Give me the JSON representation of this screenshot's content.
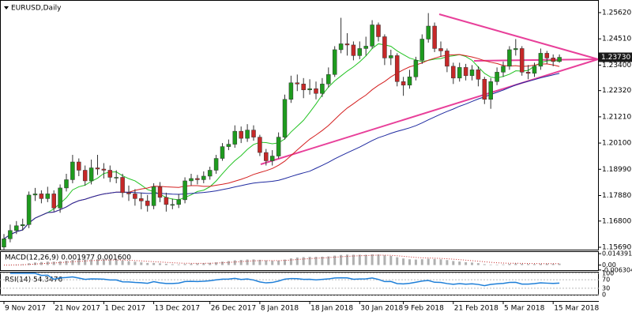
{
  "chart_data": {
    "type": "candlestick",
    "title": "EURUSD,Daily",
    "categories": [
      "9 Nov 2017",
      null,
      null,
      null,
      null,
      null,
      null,
      null,
      "21 Nov 2017",
      null,
      null,
      null,
      null,
      null,
      null,
      null,
      "1 Dec 2017",
      null,
      null,
      null,
      null,
      null,
      null,
      null,
      "13 Dec 2017",
      null,
      null,
      null,
      null,
      null,
      null,
      null,
      null,
      "26 Dec 2017",
      null,
      null,
      null,
      null,
      null,
      null,
      null,
      "8 Jan 2018",
      null,
      null,
      null,
      null,
      null,
      null,
      null,
      "18 Jan 2018",
      null,
      null,
      null,
      null,
      null,
      null,
      null,
      "30 Jan 2018",
      null,
      null,
      null,
      null,
      null,
      null,
      "9 Feb 2018",
      null,
      null,
      null,
      null,
      null,
      null,
      null,
      "21 Feb 2018",
      null,
      null,
      null,
      null,
      null,
      null,
      null,
      "5 Mar 2018",
      null,
      null,
      null,
      null,
      null,
      null,
      null,
      "15 Mar 2018",
      null
    ],
    "open": [
      1.157,
      1.1605,
      1.164,
      1.166,
      1.1665,
      1.179,
      1.1795,
      1.1775,
      1.1795,
      1.1735,
      1.182,
      1.1855,
      1.193,
      1.1895,
      1.185,
      1.1905,
      1.19,
      1.1895,
      1.1865,
      1.1865,
      1.18,
      1.1795,
      1.1775,
      1.1765,
      1.1745,
      1.1825,
      1.178,
      1.175,
      1.175,
      1.177,
      1.185,
      1.186,
      1.1855,
      1.187,
      1.1895,
      1.1945,
      1.1995,
      1.2005,
      1.206,
      1.203,
      1.2065,
      1.2035,
      1.197,
      1.1935,
      1.1955,
      1.2035,
      1.2195,
      1.2265,
      1.226,
      1.2235,
      1.224,
      1.222,
      1.226,
      1.23,
      1.2405,
      1.243,
      1.2425,
      1.238,
      1.241,
      1.242,
      1.251,
      1.246,
      1.237,
      1.238,
      1.227,
      1.2255,
      1.229,
      1.236,
      1.245,
      1.2505,
      1.241,
      1.24,
      1.2335,
      1.2285,
      1.233,
      1.2295,
      1.232,
      1.228,
      1.2195,
      1.227,
      1.231,
      1.2335,
      1.2405,
      1.241,
      1.231,
      1.2305,
      1.2335,
      1.239,
      1.237,
      1.2355
    ],
    "high": [
      1.1625,
      1.1665,
      1.168,
      1.169,
      1.1805,
      1.182,
      1.181,
      1.1825,
      1.181,
      1.1835,
      1.188,
      1.196,
      1.1945,
      1.1915,
      1.194,
      1.196,
      1.1925,
      1.1915,
      1.1895,
      1.188,
      1.183,
      1.1815,
      1.18,
      1.179,
      1.184,
      1.1845,
      1.18,
      1.1775,
      1.1795,
      1.1865,
      1.188,
      1.1875,
      1.189,
      1.191,
      1.196,
      1.201,
      1.2025,
      1.2085,
      1.208,
      1.209,
      1.2085,
      1.2045,
      1.1985,
      1.198,
      1.2055,
      1.2215,
      1.2295,
      1.23,
      1.2285,
      1.228,
      1.227,
      1.2285,
      1.233,
      1.242,
      1.254,
      1.2475,
      1.244,
      1.244,
      1.246,
      1.253,
      1.252,
      1.247,
      1.2405,
      1.239,
      1.229,
      1.232,
      1.2375,
      1.247,
      1.256,
      1.252,
      1.244,
      1.241,
      1.235,
      1.235,
      1.2345,
      1.234,
      1.2335,
      1.229,
      1.2285,
      1.233,
      1.2355,
      1.242,
      1.245,
      1.242,
      1.234,
      1.235,
      1.241,
      1.24,
      1.2385,
      1.2385
    ],
    "low": [
      1.1555,
      1.159,
      1.1625,
      1.164,
      1.165,
      1.1765,
      1.1755,
      1.176,
      1.172,
      1.1715,
      1.1805,
      1.184,
      1.187,
      1.183,
      1.1835,
      1.1875,
      1.186,
      1.1845,
      1.184,
      1.178,
      1.1765,
      1.1745,
      1.173,
      1.172,
      1.173,
      1.176,
      1.172,
      1.173,
      1.1735,
      1.1755,
      1.183,
      1.1835,
      1.184,
      1.1855,
      1.188,
      1.1935,
      1.198,
      1.199,
      1.201,
      1.2015,
      1.202,
      1.1955,
      1.1915,
      1.1915,
      1.1945,
      1.2025,
      1.218,
      1.223,
      1.22,
      1.2215,
      1.2195,
      1.2205,
      1.2245,
      1.229,
      1.239,
      1.238,
      1.236,
      1.2365,
      1.238,
      1.241,
      1.244,
      1.234,
      1.234,
      1.225,
      1.221,
      1.224,
      1.2275,
      1.2345,
      1.2435,
      1.2395,
      1.2375,
      1.231,
      1.226,
      1.227,
      1.2275,
      1.2275,
      1.225,
      1.2175,
      1.2155,
      1.2255,
      1.229,
      1.232,
      1.238,
      1.2295,
      1.228,
      1.229,
      1.232,
      1.2345,
      1.2335,
      1.235
    ],
    "close": [
      1.1605,
      1.164,
      1.166,
      1.1665,
      1.179,
      1.1795,
      1.1775,
      1.1795,
      1.1735,
      1.182,
      1.1855,
      1.193,
      1.1895,
      1.185,
      1.1905,
      1.19,
      1.1895,
      1.1865,
      1.1865,
      1.18,
      1.1795,
      1.1775,
      1.1765,
      1.1745,
      1.1825,
      1.178,
      1.175,
      1.175,
      1.177,
      1.185,
      1.186,
      1.1855,
      1.187,
      1.1895,
      1.1945,
      1.1995,
      1.2005,
      1.206,
      1.203,
      1.2065,
      1.2035,
      1.197,
      1.1935,
      1.1955,
      1.2035,
      1.2195,
      1.2265,
      1.226,
      1.2235,
      1.224,
      1.222,
      1.226,
      1.23,
      1.2405,
      1.243,
      1.2425,
      1.238,
      1.241,
      1.242,
      1.251,
      1.246,
      1.237,
      1.238,
      1.227,
      1.2255,
      1.229,
      1.236,
      1.245,
      1.2505,
      1.241,
      1.24,
      1.2335,
      1.2285,
      1.233,
      1.2295,
      1.232,
      1.228,
      1.2195,
      1.227,
      1.231,
      1.2335,
      1.2405,
      1.241,
      1.231,
      1.2305,
      1.2335,
      1.239,
      1.237,
      1.2355,
      1.2373
    ],
    "up_color": "#1e9b1e",
    "down_color": "#c62828",
    "ylim": [
      1.1559,
      1.2612
    ],
    "yticks": [
      {
        "value": 1.2562,
        "label": "1.25620"
      },
      {
        "value": 1.2451,
        "label": "1.24510"
      },
      {
        "value": 1.234,
        "label": "1.23400"
      },
      {
        "value": 1.2232,
        "label": "1.22320"
      },
      {
        "value": 1.2121,
        "label": "1.21210"
      },
      {
        "value": 1.201,
        "label": "1.20100"
      },
      {
        "value": 1.1899,
        "label": "1.18990"
      },
      {
        "value": 1.1788,
        "label": "1.17880"
      },
      {
        "value": 1.168,
        "label": "1.16800"
      },
      {
        "value": 1.1569,
        "label": "1.15690"
      }
    ],
    "price_marker": {
      "value": 1.2373,
      "label": "1.23730"
    },
    "moving_averages": [
      {
        "period": 8,
        "color": "#22c322"
      },
      {
        "period": 21,
        "color": "#d42020"
      },
      {
        "period": 50,
        "color": "#1f2aa0"
      }
    ]
  },
  "macd": {
    "label": "MACD(12,26,9) 0.001977 0.001600",
    "fast": 12,
    "slow": 26,
    "signal": 9,
    "ylim": [
      -0.0075,
      0.0165
    ],
    "yticks": [
      0.014391,
      {
        "value": 0,
        "label": "0.00"
      },
      -0.006304
    ],
    "bar_color": "#b0b0b0",
    "signal_color": "#c62828"
  },
  "rsi": {
    "label": "RSI(14) 54.3476",
    "period": 14,
    "ylim": [
      0,
      100
    ],
    "yticks": [
      100,
      70,
      30,
      0
    ],
    "color": "#1e7fd8"
  }
}
